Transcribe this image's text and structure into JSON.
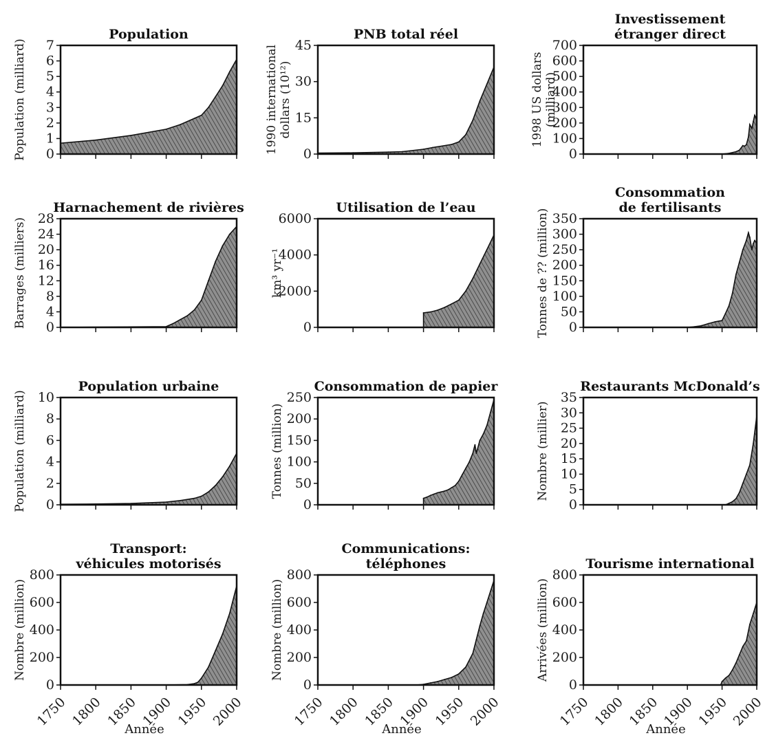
{
  "colors": {
    "fill": "#8a8a8a",
    "hatch": "#3a3a3a",
    "axis": "#111111"
  },
  "chart_data": [
    {
      "type": "area",
      "title": "Population",
      "ylabel": "Population (milliard)",
      "xlabel": "",
      "xlim": [
        1750,
        2000
      ],
      "ylim": [
        0,
        7
      ],
      "x_ticks": [
        1750,
        1800,
        1850,
        1900,
        1950,
        2000
      ],
      "x_tick_labels_shown": false,
      "y_ticks": [
        0,
        1,
        2,
        3,
        4,
        5,
        6,
        7
      ],
      "series": [
        {
          "x": [
            1750,
            1800,
            1850,
            1900,
            1920,
            1940,
            1950,
            1960,
            1970,
            1980,
            1990,
            2000
          ],
          "y": [
            0.7,
            0.9,
            1.2,
            1.6,
            1.9,
            2.3,
            2.5,
            3.0,
            3.7,
            4.4,
            5.3,
            6.1
          ]
        }
      ]
    },
    {
      "type": "area",
      "title": "PNB total réel",
      "ylabel": "1990 international dollars (10¹²)",
      "xlabel": "",
      "xlim": [
        1750,
        2000
      ],
      "ylim": [
        0,
        45
      ],
      "x_ticks": [
        1750,
        1800,
        1850,
        1900,
        1950,
        2000
      ],
      "x_tick_labels_shown": false,
      "y_ticks": [
        0,
        15,
        30,
        45
      ],
      "series": [
        {
          "x": [
            1750,
            1800,
            1850,
            1870,
            1900,
            1913,
            1940,
            1950,
            1960,
            1970,
            1980,
            1990,
            2000
          ],
          "y": [
            0.4,
            0.5,
            0.8,
            1.0,
            2.0,
            2.7,
            4.0,
            5.0,
            8.0,
            14.0,
            22.0,
            29.0,
            36.0
          ]
        }
      ]
    },
    {
      "type": "area",
      "title": "Investissement étranger direct",
      "ylabel": "1998 US dollars (milliard)",
      "xlabel": "",
      "xlim": [
        1750,
        2000
      ],
      "ylim": [
        0,
        700
      ],
      "x_ticks": [
        1750,
        1800,
        1850,
        1900,
        1950,
        2000
      ],
      "x_tick_labels_shown": false,
      "y_ticks": [
        0,
        100,
        200,
        300,
        400,
        500,
        600,
        700
      ],
      "series": [
        {
          "x": [
            1750,
            1950,
            1960,
            1970,
            1975,
            1980,
            1982,
            1985,
            1988,
            1990,
            1993,
            1995,
            1997,
            1998,
            1999,
            2000
          ],
          "y": [
            0,
            0,
            5,
            15,
            25,
            55,
            50,
            60,
            110,
            190,
            165,
            210,
            250,
            240,
            230,
            220
          ]
        }
      ]
    },
    {
      "type": "area",
      "title": "Harnachement de rivières",
      "ylabel": "Barrages (milliers)",
      "xlabel": "",
      "xlim": [
        1750,
        2000
      ],
      "ylim": [
        0,
        28
      ],
      "x_ticks": [
        1750,
        1800,
        1850,
        1900,
        1950,
        2000
      ],
      "x_tick_labels_shown": false,
      "y_ticks": [
        0,
        4,
        8,
        12,
        16,
        20,
        24,
        28
      ],
      "series": [
        {
          "x": [
            1750,
            1900,
            1910,
            1920,
            1930,
            1940,
            1950,
            1960,
            1970,
            1980,
            1990,
            2000
          ],
          "y": [
            0,
            0.2,
            1.0,
            2.0,
            3.0,
            4.5,
            7.0,
            12.0,
            17.0,
            21.0,
            24.0,
            26.0
          ]
        }
      ]
    },
    {
      "type": "area",
      "title": "Utilisation de l’eau",
      "ylabel": "km³ yr⁻¹",
      "xlabel": "",
      "xlim": [
        1750,
        2000
      ],
      "ylim": [
        0,
        6000
      ],
      "x_ticks": [
        1750,
        1800,
        1850,
        1900,
        1950,
        2000
      ],
      "x_tick_labels_shown": false,
      "y_ticks": [
        0,
        2000,
        4000,
        6000
      ],
      "series": [
        {
          "x": [
            1900,
            1910,
            1920,
            1930,
            1940,
            1950,
            1960,
            1970,
            1980,
            1990,
            2000
          ],
          "y": [
            800,
            850,
            950,
            1100,
            1300,
            1500,
            2000,
            2700,
            3500,
            4300,
            5100
          ]
        }
      ]
    },
    {
      "type": "area",
      "title": "Consommation de fertilisants",
      "ylabel": "Tonnes de ?? (million)",
      "xlabel": "",
      "xlim": [
        1750,
        2000
      ],
      "ylim": [
        0,
        350
      ],
      "x_ticks": [
        1750,
        1800,
        1850,
        1900,
        1950,
        2000
      ],
      "x_tick_labels_shown": false,
      "y_ticks": [
        0,
        50,
        100,
        150,
        200,
        250,
        300,
        350
      ],
      "series": [
        {
          "x": [
            1750,
            1900,
            1910,
            1920,
            1930,
            1940,
            1950,
            1955,
            1960,
            1965,
            1970,
            1975,
            1980,
            1985,
            1988,
            1990,
            1993,
            1995,
            1997,
            2000
          ],
          "y": [
            0,
            0,
            2,
            5,
            12,
            18,
            22,
            45,
            70,
            110,
            170,
            210,
            250,
            280,
            305,
            290,
            250,
            270,
            280,
            270
          ]
        }
      ]
    },
    {
      "type": "area",
      "title": "Population urbaine",
      "ylabel": "Population (milliard)",
      "xlabel": "",
      "xlim": [
        1750,
        2000
      ],
      "ylim": [
        0,
        10
      ],
      "x_ticks": [
        1750,
        1800,
        1850,
        1900,
        1950,
        2000
      ],
      "x_tick_labels_shown": false,
      "y_ticks": [
        0,
        2,
        4,
        6,
        8,
        10
      ],
      "series": [
        {
          "x": [
            1750,
            1800,
            1850,
            1900,
            1920,
            1940,
            1950,
            1960,
            1970,
            1980,
            1990,
            2000
          ],
          "y": [
            0.05,
            0.08,
            0.12,
            0.25,
            0.4,
            0.6,
            0.8,
            1.2,
            1.8,
            2.6,
            3.6,
            4.8
          ]
        }
      ]
    },
    {
      "type": "area",
      "title": "Consommation de papier",
      "ylabel": "Tonnes (million)",
      "xlabel": "",
      "xlim": [
        1750,
        2000
      ],
      "ylim": [
        0,
        250
      ],
      "x_ticks": [
        1750,
        1800,
        1850,
        1900,
        1950,
        2000
      ],
      "x_tick_labels_shown": false,
      "y_ticks": [
        0,
        50,
        100,
        150,
        200,
        250
      ],
      "series": [
        {
          "x": [
            1900,
            1905,
            1910,
            1915,
            1920,
            1925,
            1930,
            1935,
            1940,
            1945,
            1950,
            1955,
            1960,
            1965,
            1970,
            1973,
            1975,
            1980,
            1985,
            1990,
            1995,
            2000
          ],
          "y": [
            15,
            18,
            22,
            25,
            28,
            30,
            32,
            35,
            40,
            45,
            55,
            70,
            85,
            100,
            120,
            140,
            120,
            150,
            165,
            185,
            215,
            245
          ]
        }
      ]
    },
    {
      "type": "area",
      "title": "Restaurants McDonald’s",
      "ylabel": "Nombre (millier)",
      "xlabel": "",
      "xlim": [
        1750,
        2000
      ],
      "ylim": [
        0,
        35
      ],
      "x_ticks": [
        1750,
        1800,
        1850,
        1900,
        1950,
        2000
      ],
      "x_tick_labels_shown": false,
      "y_ticks": [
        0,
        5,
        10,
        15,
        20,
        25,
        30,
        35
      ],
      "series": [
        {
          "x": [
            1750,
            1955,
            1960,
            1965,
            1970,
            1975,
            1980,
            1985,
            1990,
            1995,
            2000
          ],
          "y": [
            0,
            0,
            0.5,
            1.0,
            2.0,
            4.0,
            7.0,
            10.0,
            13.0,
            20.0,
            29.0
          ]
        }
      ]
    },
    {
      "type": "area",
      "title": "Transport: véhicules motorisés",
      "ylabel": "Nombre (million)",
      "xlabel": "Année",
      "xlim": [
        1750,
        2000
      ],
      "ylim": [
        0,
        800
      ],
      "x_ticks": [
        1750,
        1800,
        1850,
        1900,
        1950,
        2000
      ],
      "x_tick_labels_shown": true,
      "y_ticks": [
        0,
        200,
        400,
        600,
        800
      ],
      "series": [
        {
          "x": [
            1750,
            1900,
            1930,
            1940,
            1945,
            1950,
            1960,
            1970,
            1980,
            1990,
            2000
          ],
          "y": [
            0,
            0,
            3,
            10,
            20,
            50,
            130,
            250,
            370,
            520,
            720
          ]
        }
      ]
    },
    {
      "type": "area",
      "title": "Communications: téléphones",
      "ylabel": "Nombre (million)",
      "xlabel": "Année",
      "xlim": [
        1750,
        2000
      ],
      "ylim": [
        0,
        800
      ],
      "x_ticks": [
        1750,
        1800,
        1850,
        1900,
        1950,
        2000
      ],
      "x_tick_labels_shown": true,
      "y_ticks": [
        0,
        200,
        400,
        600,
        800
      ],
      "series": [
        {
          "x": [
            1750,
            1890,
            1900,
            1910,
            1920,
            1930,
            1940,
            1950,
            1960,
            1970,
            1975,
            1980,
            1985,
            1990,
            1995,
            2000
          ],
          "y": [
            0,
            0,
            5,
            15,
            25,
            40,
            55,
            80,
            130,
            230,
            330,
            430,
            520,
            600,
            680,
            760
          ]
        }
      ]
    },
    {
      "type": "area",
      "title": "Tourisme international",
      "ylabel": "Arrivées (million)",
      "xlabel": "Année",
      "xlim": [
        1750,
        2000
      ],
      "ylim": [
        0,
        800
      ],
      "x_ticks": [
        1750,
        1800,
        1850,
        1900,
        1950,
        2000
      ],
      "x_tick_labels_shown": true,
      "y_ticks": [
        0,
        200,
        400,
        600,
        800
      ],
      "series": [
        {
          "x": [
            1750,
            1948,
            1950,
            1955,
            1960,
            1965,
            1970,
            1975,
            1980,
            1985,
            1990,
            1995,
            2000
          ],
          "y": [
            0,
            0,
            25,
            50,
            70,
            110,
            160,
            220,
            280,
            320,
            440,
            520,
            600
          ]
        }
      ]
    }
  ]
}
